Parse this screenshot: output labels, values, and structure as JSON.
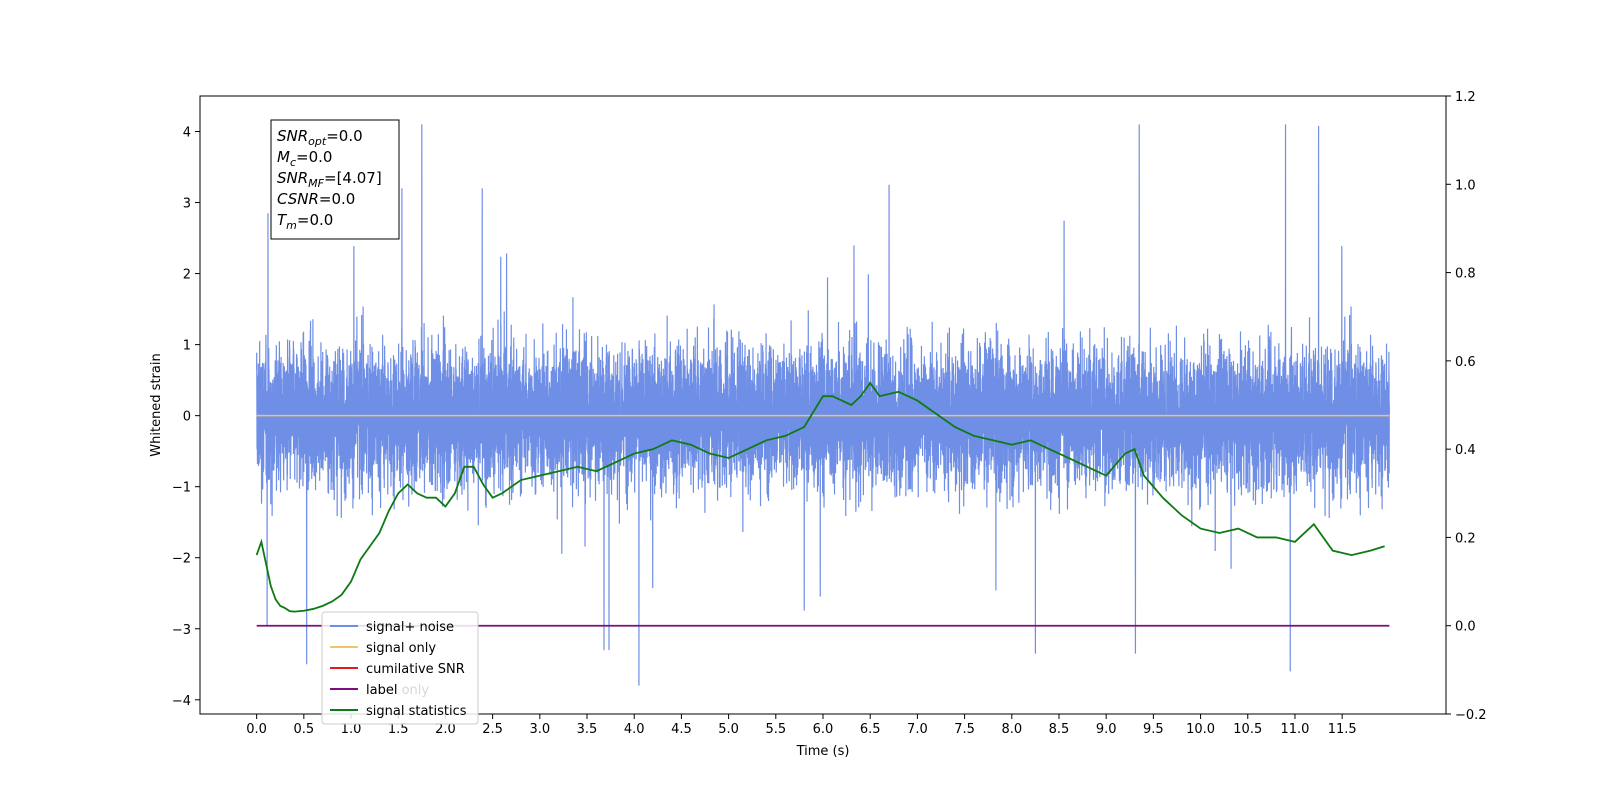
{
  "chart_data": {
    "type": "line",
    "xlabel": "Time (s)",
    "ylabel": "Whitened strain",
    "xlim": [
      -0.6,
      12.6
    ],
    "ylim": [
      -4.2,
      4.5
    ],
    "y2lim": [
      -0.2,
      1.2
    ],
    "x_ticks": [
      "0.0",
      "0.5",
      "1.0",
      "1.5",
      "2.0",
      "2.5",
      "3.0",
      "3.5",
      "4.0",
      "4.5",
      "5.0",
      "5.5",
      "6.0",
      "6.5",
      "7.0",
      "7.5",
      "8.0",
      "8.5",
      "9.0",
      "9.5",
      "10.0",
      "10.5",
      "11.0",
      "11.5"
    ],
    "y_ticks": [
      "4",
      "3",
      "2",
      "1",
      "0",
      "−1",
      "−2",
      "−3",
      "−4"
    ],
    "y2_ticks": [
      "1.2",
      "1.0",
      "0.8",
      "0.6",
      "0.4",
      "0.2",
      "0.0",
      "−0.2"
    ],
    "colors": {
      "signal_noise": "#6f8fe6",
      "signal_only": "#f5c26b",
      "cumulative_snr": "#e41a1c",
      "label": "#7b0f7b",
      "statistics": "#0f7a14"
    },
    "annotation": [
      {
        "base": "SNR",
        "sub": "opt",
        "value": "=0.0"
      },
      {
        "base": "M",
        "sub": "c",
        "value": "=0.0"
      },
      {
        "base": "SNR",
        "sub": "MF",
        "value": "=[4.07]"
      },
      {
        "base": "CSNR",
        "sub": "",
        "value": "=0.0"
      },
      {
        "base": "T",
        "sub": "m",
        "value": "=0.0"
      }
    ],
    "legend": [
      "signal+ noise",
      "signal only",
      "cumilative SNR",
      "label",
      "signal statistics"
    ],
    "legend_hidden_text": "label only",
    "series": [
      {
        "name": "signal+ noise",
        "axis": "left",
        "x_range": [
          0.0,
          12.0
        ],
        "amplitude_note": "noise ±1.5, peaks to 4.1 / -3.8"
      },
      {
        "name": "signal only",
        "axis": "left",
        "x": [
          0.0,
          12.0
        ],
        "y": [
          0.0,
          0.0
        ]
      },
      {
        "name": "label",
        "axis": "right",
        "x": [
          0.0,
          12.0
        ],
        "y": [
          0.0,
          0.0
        ]
      },
      {
        "name": "signal statistics",
        "axis": "right",
        "x": [
          0.0,
          0.05,
          0.1,
          0.15,
          0.2,
          0.25,
          0.3,
          0.35,
          0.4,
          0.5,
          0.6,
          0.7,
          0.8,
          0.9,
          1.0,
          1.1,
          1.2,
          1.3,
          1.4,
          1.5,
          1.6,
          1.7,
          1.8,
          1.9,
          2.0,
          2.1,
          2.2,
          2.3,
          2.4,
          2.5,
          2.6,
          2.8,
          3.0,
          3.2,
          3.4,
          3.6,
          3.8,
          4.0,
          4.2,
          4.4,
          4.6,
          4.8,
          5.0,
          5.2,
          5.4,
          5.6,
          5.8,
          6.0,
          6.1,
          6.2,
          6.3,
          6.4,
          6.5,
          6.6,
          6.8,
          7.0,
          7.2,
          7.4,
          7.6,
          7.8,
          8.0,
          8.2,
          8.4,
          8.6,
          8.8,
          9.0,
          9.2,
          9.3,
          9.4,
          9.6,
          9.8,
          10.0,
          10.2,
          10.4,
          10.6,
          10.8,
          11.0,
          11.2,
          11.4,
          11.6,
          11.8,
          11.95
        ],
        "y": [
          0.16,
          0.19,
          0.14,
          0.09,
          0.06,
          0.045,
          0.04,
          0.033,
          0.032,
          0.034,
          0.038,
          0.045,
          0.055,
          0.07,
          0.1,
          0.15,
          0.18,
          0.21,
          0.26,
          0.3,
          0.32,
          0.3,
          0.29,
          0.29,
          0.27,
          0.3,
          0.36,
          0.36,
          0.32,
          0.29,
          0.3,
          0.33,
          0.34,
          0.35,
          0.36,
          0.35,
          0.37,
          0.39,
          0.4,
          0.42,
          0.41,
          0.39,
          0.38,
          0.4,
          0.42,
          0.43,
          0.45,
          0.52,
          0.52,
          0.51,
          0.5,
          0.52,
          0.55,
          0.52,
          0.53,
          0.51,
          0.48,
          0.45,
          0.43,
          0.42,
          0.41,
          0.42,
          0.4,
          0.38,
          0.36,
          0.34,
          0.39,
          0.4,
          0.34,
          0.29,
          0.25,
          0.22,
          0.21,
          0.22,
          0.2,
          0.2,
          0.19,
          0.23,
          0.17,
          0.16,
          0.17,
          0.18
        ]
      }
    ]
  }
}
